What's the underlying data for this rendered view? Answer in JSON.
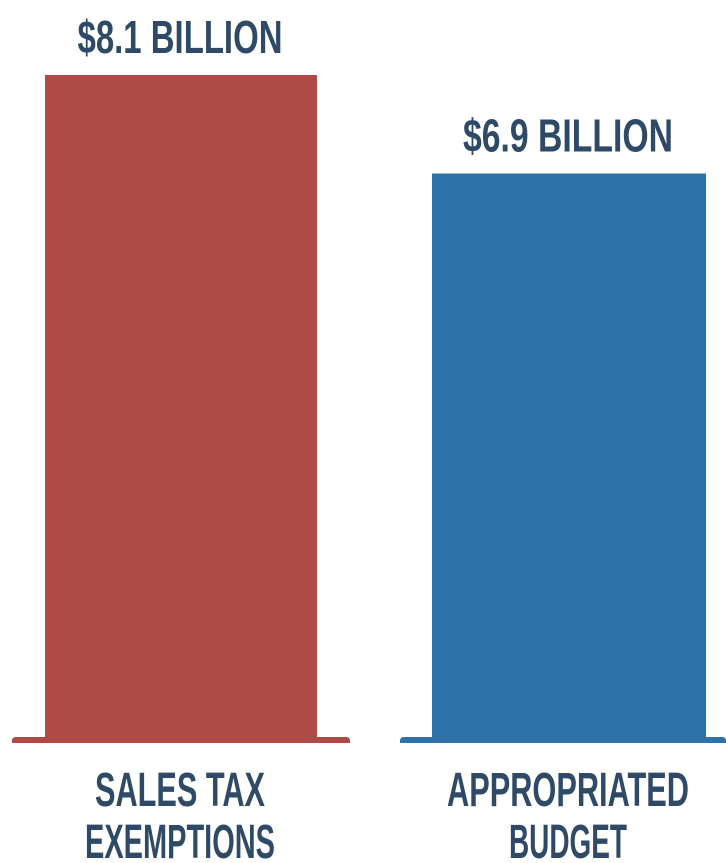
{
  "chart_data": {
    "type": "bar",
    "categories": [
      "SALES TAX EXEMPTIONS",
      "APPROPRIATED BUDGET"
    ],
    "category_lines": [
      [
        "SALES TAX",
        "EXEMPTIONS"
      ],
      [
        "APPROPRIATED",
        "BUDGET"
      ]
    ],
    "values": [
      8.1,
      6.9
    ],
    "units": "billion dollars",
    "data_labels": [
      "$8.1 BILLION",
      "$6.9 BILLION"
    ],
    "colors": [
      "#b04a47",
      "#2d72a8"
    ],
    "label_color": "#2f4a66",
    "title": "",
    "xlabel": "",
    "ylabel": "",
    "ylim": [
      0,
      8.1
    ],
    "grid": false,
    "legend": "none"
  }
}
